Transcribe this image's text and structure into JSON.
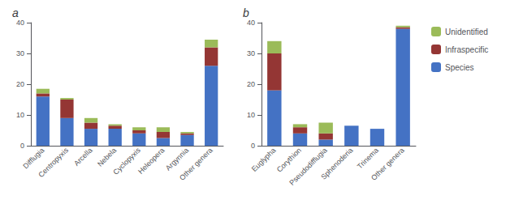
{
  "chart_data": [
    {
      "type": "bar",
      "title": "a",
      "stacked": true,
      "grid": false,
      "categories": [
        "Difflugia",
        "Centropyxis",
        "Arcella",
        "Nebela",
        "Cyclopyxis",
        "Heleopera",
        "Argynnia",
        "Other genera"
      ],
      "series": [
        {
          "name": "Species",
          "color": "#4472C4",
          "values": [
            16,
            9,
            5.5,
            5.5,
            4,
            2.5,
            3.5,
            26
          ]
        },
        {
          "name": "Infraspecific",
          "color": "#943634",
          "values": [
            1,
            6,
            2,
            1,
            1,
            2,
            0.5,
            6
          ]
        },
        {
          "name": "Unidentified",
          "color": "#9BBB59",
          "values": [
            1.5,
            0.5,
            1.5,
            0.5,
            1,
            1.5,
            0.5,
            2.5
          ]
        }
      ],
      "ylim": [
        0,
        40
      ],
      "yticks": [
        0,
        10,
        20,
        30,
        40
      ]
    },
    {
      "type": "bar",
      "title": "b",
      "stacked": true,
      "grid": false,
      "legend": "right",
      "categories": [
        "Euglypha",
        "Corythion",
        "Pseudodifflugia",
        "Sphenoderia",
        "Trinema",
        "Other genera"
      ],
      "series": [
        {
          "name": "Species",
          "color": "#4472C4",
          "values": [
            18,
            4,
            2,
            6.5,
            5.5,
            38
          ]
        },
        {
          "name": "Infraspecific",
          "color": "#943634",
          "values": [
            12,
            2,
            2,
            0,
            0,
            0.5
          ]
        },
        {
          "name": "Unidentified",
          "color": "#9BBB59",
          "values": [
            4,
            1,
            3.5,
            0,
            0,
            0.5
          ]
        }
      ],
      "ylim": [
        0,
        40
      ],
      "yticks": [
        0,
        10,
        20,
        30,
        40
      ]
    }
  ]
}
